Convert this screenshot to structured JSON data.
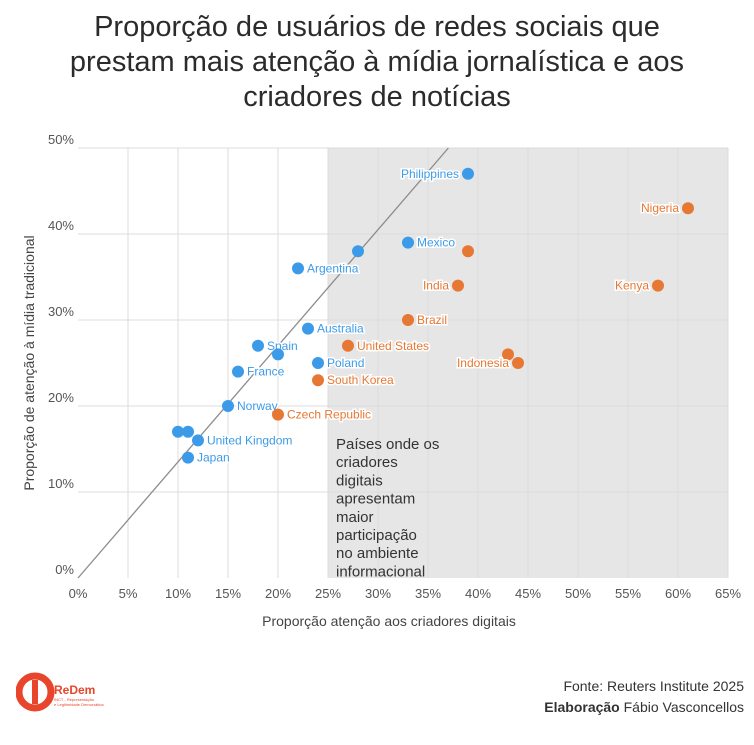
{
  "title_lines": [
    "Proporção de usuários de redes sociais que",
    "prestam mais atenção à mídia jornalística e aos",
    "criadores de notícias"
  ],
  "chart_data": {
    "type": "scatter",
    "xlabel": "Proporção atenção aos criadores digitais",
    "ylabel": "Proporção de atenção à mídia tradicional",
    "xlim": [
      0,
      65
    ],
    "ylim": [
      0,
      50
    ],
    "x_ticks": [
      "0%",
      "5%",
      "10%",
      "15%",
      "20%",
      "25%",
      "30%",
      "35%",
      "40%",
      "45%",
      "50%",
      "55%",
      "60%",
      "65%"
    ],
    "y_ticks": [
      "0%",
      "10%",
      "20%",
      "30%",
      "40%",
      "50%"
    ],
    "grid": true,
    "shaded_region": {
      "x_from": 25,
      "x_to": 65
    },
    "diagonal": {
      "slope": 1.35
    },
    "annotation": "Países onde os criadores digitais apresentam maior participação no ambiente informacional",
    "colors": {
      "traditional": "#3c9be8",
      "creators": "#e67833",
      "shade": "#e6e6e6",
      "grid": "#dcdcdc",
      "line": "#8c8c8c"
    },
    "points": [
      {
        "label": "Philippines",
        "x": 39,
        "y": 47,
        "group": "traditional",
        "label_side": "left"
      },
      {
        "label": "Nigeria",
        "x": 61,
        "y": 43,
        "group": "creators",
        "label_side": "left"
      },
      {
        "label": "",
        "x": 28,
        "y": 38,
        "group": "traditional",
        "label_side": "right"
      },
      {
        "label": "Mexico",
        "x": 33,
        "y": 39,
        "group": "traditional",
        "label_side": "right"
      },
      {
        "label": "",
        "x": 39,
        "y": 38,
        "group": "creators",
        "label_side": "right"
      },
      {
        "label": "Argentina",
        "x": 22,
        "y": 36,
        "group": "traditional",
        "label_side": "right"
      },
      {
        "label": "India",
        "x": 38,
        "y": 34,
        "group": "creators",
        "label_side": "left"
      },
      {
        "label": "Kenya",
        "x": 58,
        "y": 34,
        "group": "creators",
        "label_side": "left"
      },
      {
        "label": "Brazil",
        "x": 33,
        "y": 30,
        "group": "creators",
        "label_side": "right"
      },
      {
        "label": "Australia",
        "x": 23,
        "y": 29,
        "group": "traditional",
        "label_side": "right"
      },
      {
        "label": "Spain",
        "x": 18,
        "y": 27,
        "group": "traditional",
        "label_side": "right"
      },
      {
        "label": "",
        "x": 20,
        "y": 26,
        "group": "traditional",
        "label_side": "right"
      },
      {
        "label": "United States",
        "x": 27,
        "y": 27,
        "group": "creators",
        "label_side": "right"
      },
      {
        "label": "",
        "x": 43,
        "y": 26,
        "group": "creators",
        "label_side": "right"
      },
      {
        "label": "Indonesia",
        "x": 44,
        "y": 25,
        "group": "creators",
        "label_side": "left"
      },
      {
        "label": "Poland",
        "x": 24,
        "y": 25,
        "group": "traditional",
        "label_side": "right"
      },
      {
        "label": "France",
        "x": 16,
        "y": 24,
        "group": "traditional",
        "label_side": "right"
      },
      {
        "label": "South Korea",
        "x": 24,
        "y": 23,
        "group": "creators",
        "label_side": "right"
      },
      {
        "label": "Norway",
        "x": 15,
        "y": 20,
        "group": "traditional",
        "label_side": "right"
      },
      {
        "label": "Czech Republic",
        "x": 20,
        "y": 19,
        "group": "creators",
        "label_side": "right"
      },
      {
        "label": "",
        "x": 10,
        "y": 17,
        "group": "traditional",
        "label_side": "right"
      },
      {
        "label": "",
        "x": 11,
        "y": 17,
        "group": "traditional",
        "label_side": "right"
      },
      {
        "label": "United Kingdom",
        "x": 12,
        "y": 16,
        "group": "traditional",
        "label_side": "right"
      },
      {
        "label": "Japan",
        "x": 11,
        "y": 14,
        "group": "traditional",
        "label_side": "right"
      }
    ]
  },
  "footer": {
    "source": "Fonte: Reuters Institute 2025",
    "credit_label": "Elaboração",
    "credit_name": "Fábio Vasconcellos"
  },
  "logo": {
    "name": "ReDem",
    "tagline_1": "INCT - Representação",
    "tagline_2": "e Legitimidade Democrática"
  }
}
